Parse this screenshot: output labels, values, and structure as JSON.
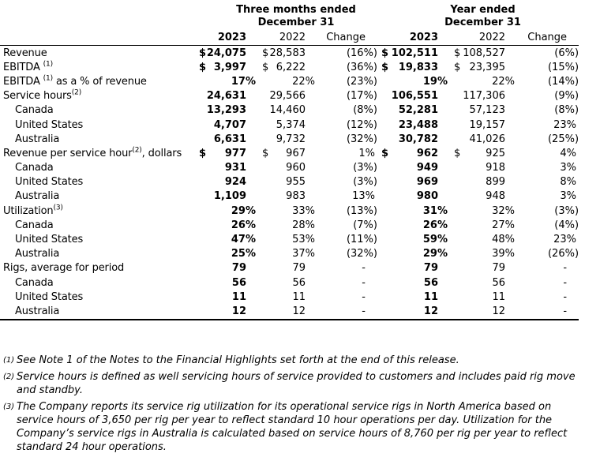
{
  "table": {
    "group_headers": [
      {
        "line1": "Three months ended",
        "line2": "December 31"
      },
      {
        "line1": "Year ended",
        "line2": "December 31"
      }
    ],
    "column_headers": [
      "2023",
      "2022",
      "Change",
      "2023",
      "2022",
      "Change"
    ],
    "rows": [
      {
        "label": {
          "pre": "Revenue",
          "sup": "",
          "post": ""
        },
        "indent": false,
        "cells": [
          {
            "pre": "$",
            "v": "24,075"
          },
          {
            "pre": "$",
            "v": "28,583"
          },
          {
            "v": "(16%)"
          },
          {
            "pre": "$",
            "v": "102,511"
          },
          {
            "pre": "$",
            "v": "108,527"
          },
          {
            "v": "(6%)"
          }
        ]
      },
      {
        "label": {
          "pre": "EBITDA ",
          "sup": "(1)",
          "post": ""
        },
        "indent": false,
        "cells": [
          {
            "pre": "$",
            "v": "3,997"
          },
          {
            "pre": "$",
            "v": "6,222"
          },
          {
            "v": "(36%)"
          },
          {
            "pre": "$",
            "v": "19,833"
          },
          {
            "pre": "$",
            "v": "23,395"
          },
          {
            "v": "(15%)"
          }
        ]
      },
      {
        "label": {
          "pre": "EBITDA ",
          "sup": "(1)",
          "post": " as a % of revenue"
        },
        "indent": false,
        "cells": [
          {
            "v": "17%"
          },
          {
            "v": "22%"
          },
          {
            "v": "(23%)"
          },
          {
            "v": "19%"
          },
          {
            "v": "22%"
          },
          {
            "v": "(14%)"
          }
        ]
      },
      {
        "label": {
          "pre": "Service hours",
          "sup": "(2)",
          "post": ""
        },
        "indent": false,
        "cells": [
          {
            "v": "24,631"
          },
          {
            "v": "29,566"
          },
          {
            "v": "(17%)"
          },
          {
            "v": "106,551"
          },
          {
            "v": "117,306"
          },
          {
            "v": "(9%)"
          }
        ]
      },
      {
        "label": {
          "pre": "Canada",
          "sup": "",
          "post": ""
        },
        "indent": true,
        "cells": [
          {
            "v": "13,293"
          },
          {
            "v": "14,460"
          },
          {
            "v": "(8%)"
          },
          {
            "v": "52,281"
          },
          {
            "v": "57,123"
          },
          {
            "v": "(8%)"
          }
        ]
      },
      {
        "label": {
          "pre": "United States",
          "sup": "",
          "post": ""
        },
        "indent": true,
        "cells": [
          {
            "v": "4,707"
          },
          {
            "v": "5,374"
          },
          {
            "v": "(12%)"
          },
          {
            "v": "23,488"
          },
          {
            "v": "19,157"
          },
          {
            "v": "23%"
          }
        ]
      },
      {
        "label": {
          "pre": "Australia",
          "sup": "",
          "post": ""
        },
        "indent": true,
        "cells": [
          {
            "v": "6,631"
          },
          {
            "v": "9,732"
          },
          {
            "v": "(32%)"
          },
          {
            "v": "30,782"
          },
          {
            "v": "41,026"
          },
          {
            "v": "(25%)"
          }
        ]
      },
      {
        "label": {
          "pre": "Revenue per service hour",
          "sup": "(2)",
          "post": ", dollars"
        },
        "indent": false,
        "cells": [
          {
            "pre": "$",
            "v": "977"
          },
          {
            "pre": "$",
            "v": "967"
          },
          {
            "v": "1%"
          },
          {
            "pre": "$",
            "v": "962"
          },
          {
            "pre": "$",
            "v": "925"
          },
          {
            "v": "4%"
          }
        ]
      },
      {
        "label": {
          "pre": "Canada",
          "sup": "",
          "post": ""
        },
        "indent": true,
        "cells": [
          {
            "v": "931"
          },
          {
            "v": "960"
          },
          {
            "v": "(3%)"
          },
          {
            "v": "949"
          },
          {
            "v": "918"
          },
          {
            "v": "3%"
          }
        ]
      },
      {
        "label": {
          "pre": "United States",
          "sup": "",
          "post": ""
        },
        "indent": true,
        "cells": [
          {
            "v": "924"
          },
          {
            "v": "955"
          },
          {
            "v": "(3%)"
          },
          {
            "v": "969"
          },
          {
            "v": "899"
          },
          {
            "v": "8%"
          }
        ]
      },
      {
        "label": {
          "pre": "Australia",
          "sup": "",
          "post": ""
        },
        "indent": true,
        "cells": [
          {
            "v": "1,109"
          },
          {
            "v": "983"
          },
          {
            "v": "13%"
          },
          {
            "v": "980"
          },
          {
            "v": "948"
          },
          {
            "v": "3%"
          }
        ]
      },
      {
        "label": {
          "pre": "Utilization",
          "sup": "(3)",
          "post": ""
        },
        "indent": false,
        "cells": [
          {
            "v": "29%"
          },
          {
            "v": "33%"
          },
          {
            "v": "(13%)"
          },
          {
            "v": "31%"
          },
          {
            "v": "32%"
          },
          {
            "v": "(3%)"
          }
        ]
      },
      {
        "label": {
          "pre": "Canada",
          "sup": "",
          "post": ""
        },
        "indent": true,
        "cells": [
          {
            "v": "26%"
          },
          {
            "v": "28%"
          },
          {
            "v": "(7%)"
          },
          {
            "v": "26%"
          },
          {
            "v": "27%"
          },
          {
            "v": "(4%)"
          }
        ]
      },
      {
        "label": {
          "pre": "United States",
          "sup": "",
          "post": ""
        },
        "indent": true,
        "cells": [
          {
            "v": "47%"
          },
          {
            "v": "53%"
          },
          {
            "v": "(11%)"
          },
          {
            "v": "59%"
          },
          {
            "v": "48%"
          },
          {
            "v": "23%"
          }
        ]
      },
      {
        "label": {
          "pre": "Australia",
          "sup": "",
          "post": ""
        },
        "indent": true,
        "cells": [
          {
            "v": "25%"
          },
          {
            "v": "37%"
          },
          {
            "v": "(32%)"
          },
          {
            "v": "29%"
          },
          {
            "v": "39%"
          },
          {
            "v": "(26%)"
          }
        ]
      },
      {
        "label": {
          "pre": "Rigs, average for period",
          "sup": "",
          "post": ""
        },
        "indent": false,
        "cells": [
          {
            "v": "79"
          },
          {
            "v": "79"
          },
          {
            "v": "-"
          },
          {
            "v": "79"
          },
          {
            "v": "79"
          },
          {
            "v": "-"
          }
        ]
      },
      {
        "label": {
          "pre": "Canada",
          "sup": "",
          "post": ""
        },
        "indent": true,
        "cells": [
          {
            "v": "56"
          },
          {
            "v": "56"
          },
          {
            "v": "-"
          },
          {
            "v": "56"
          },
          {
            "v": "56"
          },
          {
            "v": "-"
          }
        ]
      },
      {
        "label": {
          "pre": "United States",
          "sup": "",
          "post": ""
        },
        "indent": true,
        "cells": [
          {
            "v": "11"
          },
          {
            "v": "11"
          },
          {
            "v": "-"
          },
          {
            "v": "11"
          },
          {
            "v": "11"
          },
          {
            "v": "-"
          }
        ]
      },
      {
        "label": {
          "pre": "Australia",
          "sup": "",
          "post": ""
        },
        "indent": true,
        "cells": [
          {
            "v": "12"
          },
          {
            "v": "12"
          },
          {
            "v": "-"
          },
          {
            "v": "12"
          },
          {
            "v": "12"
          },
          {
            "v": "-"
          }
        ]
      }
    ]
  },
  "footnotes": [
    {
      "marker": "(1)",
      "text": "See Note 1 of the Notes to the Financial Highlights set forth at the end of this release."
    },
    {
      "marker": "(2)",
      "text": "Service hours is defined as well servicing hours of service provided to customers and includes paid rig move and standby."
    },
    {
      "marker": "(3)",
      "text": "The Company reports its service rig utilization for its operational service rigs in North America based on service hours of 3,650 per rig per year to reflect standard 10 hour operations per day. Utilization for the Company’s service rigs in Australia is calculated based on service hours of 8,760 per rig per year to reflect standard 24 hour operations."
    }
  ],
  "colors": {
    "text": "#000000",
    "background": "#ffffff",
    "rule": "#000000"
  }
}
